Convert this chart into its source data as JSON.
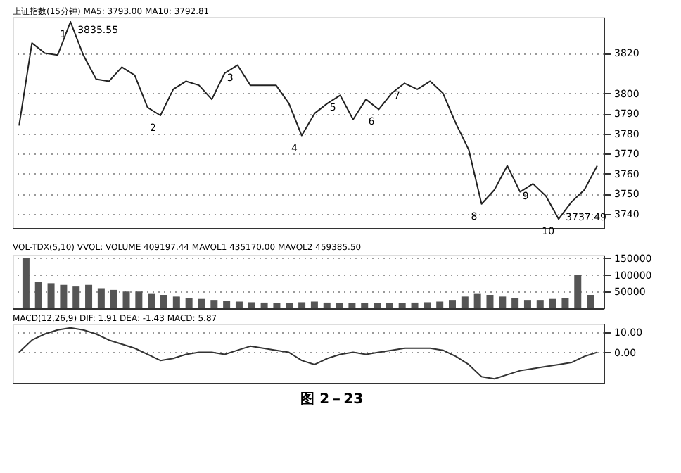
{
  "chart_data": [
    {
      "type": "line",
      "title": "上证指数(15分钟) MA5: 3793.00 MA10: 3792.81",
      "categories": [
        null,
        null,
        null,
        null,
        null,
        null,
        null,
        null,
        null,
        null,
        null,
        null,
        null,
        null,
        null,
        null,
        null,
        null,
        null,
        null,
        null,
        null,
        null,
        null,
        null,
        null,
        null,
        null,
        null,
        null,
        null,
        null,
        null,
        null,
        null,
        null,
        null,
        null,
        null,
        null,
        null,
        null,
        null,
        null,
        null,
        null
      ],
      "series": [
        {
          "color": "#222222",
          "values": [
            3784,
            3825,
            3820,
            3819,
            3835.55,
            3819,
            3807,
            3806,
            3813,
            3809,
            3793,
            3789,
            3802,
            3806,
            3804,
            3797,
            3810,
            3814,
            3804,
            3804,
            3804,
            3795,
            3779,
            3790,
            3795,
            3799,
            3787,
            3797,
            3792,
            3800,
            3805,
            3802,
            3806,
            3800,
            3785,
            3772,
            3745,
            3752,
            3764,
            3751,
            3755,
            3749,
            3737.49,
            3746,
            3752,
            3764
          ]
        }
      ],
      "value_labels": [
        null,
        null,
        null,
        null,
        "1",
        null,
        null,
        null,
        null,
        null,
        null,
        "2",
        null,
        null,
        null,
        null,
        null,
        "3",
        null,
        null,
        null,
        null,
        "4",
        null,
        null,
        "5",
        null,
        null,
        "6",
        null,
        "7",
        null,
        null,
        null,
        null,
        null,
        "8",
        null,
        null,
        null,
        "9",
        null,
        "10",
        null,
        null,
        null
      ],
      "ylim": [
        3733,
        3838
      ],
      "yticks": [
        3740,
        3750,
        3760,
        3770,
        3780,
        3790,
        3800,
        3820
      ],
      "tick_labels": "y",
      "grid": "y",
      "line_style": "solid",
      "annotations": [
        "3835.55",
        "3737.49"
      ]
    },
    {
      "type": "bar",
      "title": "VOL-TDX(5,10) VVOL: VOLUME 409197.44 MAVOL1 435170.00 MAVOL2 459385.50",
      "categories": [
        null,
        null,
        null,
        null,
        null,
        null,
        null,
        null,
        null,
        null,
        null,
        null,
        null,
        null,
        null,
        null,
        null,
        null,
        null,
        null,
        null,
        null,
        null,
        null,
        null,
        null,
        null,
        null,
        null,
        null,
        null,
        null,
        null,
        null,
        null,
        null,
        null,
        null,
        null,
        null,
        null,
        null,
        null,
        null,
        null,
        null
      ],
      "series": [
        {
          "color": "#555555",
          "values": [
            150000,
            80000,
            75000,
            70000,
            65000,
            70000,
            60000,
            55000,
            50000,
            50000,
            45000,
            40000,
            35000,
            30000,
            28000,
            25000,
            22000,
            20000,
            18000,
            17000,
            16000,
            16000,
            18000,
            20000,
            17000,
            16000,
            15000,
            15000,
            16000,
            15000,
            16000,
            17000,
            18000,
            20000,
            25000,
            35000,
            45000,
            40000,
            35000,
            30000,
            25000,
            25000,
            28000,
            30000,
            100000,
            40000
          ]
        }
      ],
      "ylim": [
        0,
        160000
      ],
      "yticks": [
        50000,
        100000,
        150000
      ],
      "tick_labels": "y",
      "grid": "y"
    },
    {
      "type": "line",
      "title": "MACD(12,26,9) DIF: 1.91 DEA: -1.43 MACD: 5.87",
      "categories": [
        null,
        null,
        null,
        null,
        null,
        null,
        null,
        null,
        null,
        null,
        null,
        null,
        null,
        null,
        null,
        null,
        null,
        null,
        null,
        null,
        null,
        null,
        null,
        null,
        null,
        null,
        null,
        null,
        null,
        null,
        null,
        null,
        null,
        null,
        null,
        null,
        null,
        null,
        null,
        null,
        null,
        null,
        null,
        null,
        null,
        null
      ],
      "series": [
        {
          "color": "#333333",
          "values": [
            0,
            6,
            9,
            11,
            12,
            11,
            9,
            6,
            4,
            2,
            -1,
            -4,
            -3,
            -1,
            0,
            0,
            -1,
            1,
            3,
            2,
            1,
            0,
            -4,
            -6,
            -3,
            -1,
            0,
            -1,
            0,
            1,
            2,
            2,
            2,
            1,
            -2,
            -6,
            -12,
            -13,
            -11,
            -9,
            -8,
            -7,
            -6,
            -5,
            -2,
            0
          ]
        }
      ],
      "ylim": [
        -15,
        14
      ],
      "yticks": [
        {
          "value": 0,
          "label": "0.00"
        },
        {
          "value": 10,
          "label": "10.00"
        }
      ],
      "tick_labels": "y",
      "grid": "y",
      "line_style": "solid",
      "annotations": [
        "图 2－23"
      ]
    }
  ]
}
